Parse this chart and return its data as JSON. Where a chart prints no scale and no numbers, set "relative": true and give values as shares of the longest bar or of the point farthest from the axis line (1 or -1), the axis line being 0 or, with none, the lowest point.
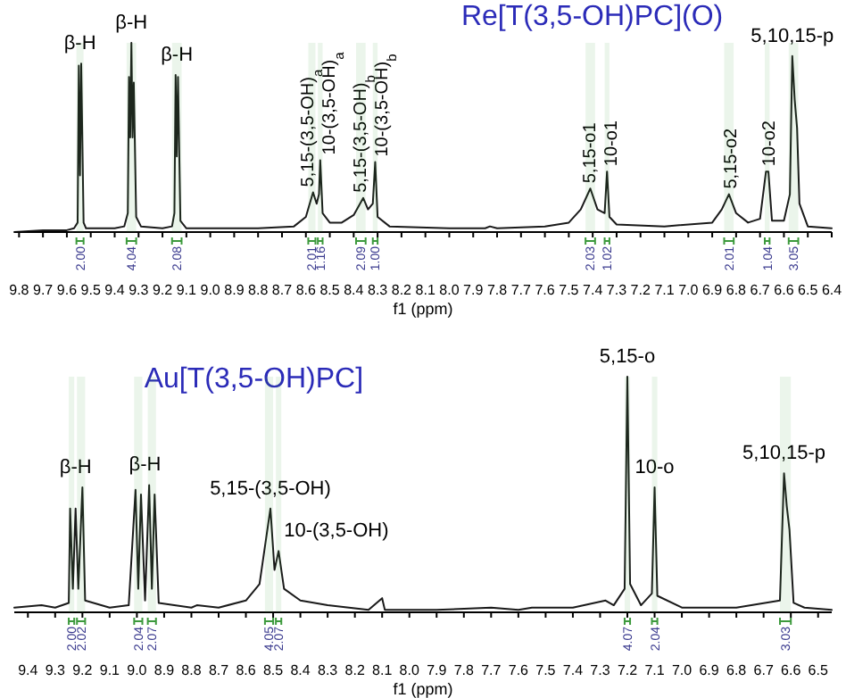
{
  "chart_data": [
    {
      "type": "line",
      "title": "Re[T(3,5-OH)PC](O)",
      "xlabel": "f1 (ppm)",
      "relative": true,
      "xlim": [
        9.82,
        6.4
      ],
      "xticks": [
        9.8,
        9.7,
        9.6,
        9.5,
        9.4,
        9.3,
        9.2,
        9.1,
        {
          "value": 9,
          "label": "9.0"
        },
        8.9,
        8.8,
        8.7,
        8.6,
        8.5,
        8.4,
        8.3,
        8.2,
        8.1,
        {
          "value": 8,
          "label": "8.0"
        },
        7.9,
        7.8,
        7.7,
        7.6,
        7.5,
        7.4,
        7.3,
        7.2,
        7.1,
        {
          "value": 7,
          "label": "7.0"
        },
        6.9,
        6.8,
        6.7,
        6.6,
        6.5,
        6.4
      ],
      "x": [
        9.82,
        9.7,
        9.6,
        9.57,
        9.555,
        9.55,
        9.545,
        9.54,
        9.53,
        9.52,
        9.4,
        9.36,
        9.345,
        9.34,
        9.335,
        9.33,
        9.325,
        9.32,
        9.31,
        9.29,
        9.2,
        9.16,
        9.15,
        9.145,
        9.14,
        9.135,
        9.125,
        9.1,
        9.0,
        8.8,
        8.65,
        8.6,
        8.57,
        8.555,
        8.545,
        8.54,
        8.53,
        8.5,
        8.45,
        8.4,
        8.36,
        8.34,
        8.32,
        8.31,
        8.3,
        8.25,
        8.0,
        7.85,
        7.83,
        7.8,
        7.6,
        7.5,
        7.45,
        7.41,
        7.38,
        7.35,
        7.34,
        7.33,
        7.3,
        7.1,
        6.9,
        6.86,
        6.83,
        6.8,
        6.75,
        6.7,
        6.675,
        6.665,
        6.65,
        6.6,
        6.575,
        6.565,
        6.555,
        6.545,
        6.535,
        6.5,
        6.4
      ],
      "series": [
        {
          "color": "#1a1a1a",
          "values": [
            0,
            0.01,
            0.01,
            0.02,
            0.05,
            0.88,
            0.3,
            0.89,
            0.05,
            0.02,
            0.02,
            0.03,
            0.1,
            0.82,
            0.5,
            1,
            0.5,
            0.79,
            0.08,
            0.03,
            0.02,
            0.03,
            0.1,
            0.83,
            0.4,
            0.82,
            0.06,
            0.02,
            0.02,
            0.02,
            0.03,
            0.08,
            0.21,
            0.15,
            0.2,
            0.38,
            0.1,
            0.05,
            0.05,
            0.09,
            0.18,
            0.12,
            0.15,
            0.37,
            0.08,
            0.03,
            0.02,
            0.02,
            0.03,
            0.02,
            0.03,
            0.05,
            0.12,
            0.23,
            0.12,
            0.1,
            0.32,
            0.08,
            0.04,
            0.03,
            0.05,
            0.12,
            0.2,
            0.1,
            0.05,
            0.07,
            0.32,
            0.32,
            0.06,
            0.06,
            0.2,
            0.93,
            0.7,
            0.55,
            0.15,
            0.03,
            0.02
          ]
        }
      ],
      "annotations": [
        {
          "text": "β-H",
          "x": 9.545,
          "y": 0.89
        },
        {
          "text": "β-H",
          "x": 9.33,
          "y": 1
        },
        {
          "text": "β-H",
          "x": 9.14,
          "y": 0.83
        },
        {
          "text": "5,15-(3,5-OH)$_{a}$",
          "x": 8.57,
          "y": 0.21
        },
        {
          "text": "10-(3,5-OH)$_{a}$",
          "x": 8.54,
          "y": 0.38
        },
        {
          "text": "5,15-(3,5-OH)$_{b}$",
          "x": 8.36,
          "y": 0.18
        },
        {
          "text": "10-(3,5-OH)$_{b}$",
          "x": 8.31,
          "y": 0.37
        },
        {
          "text": "5,15-o1",
          "x": 7.41,
          "y": 0.23
        },
        {
          "text": "10-o1",
          "x": 7.34,
          "y": 0.32
        },
        {
          "text": "5,15-o2",
          "x": 6.83,
          "y": 0.2
        },
        {
          "text": "10-o2",
          "x": 6.67,
          "y": 0.32
        },
        {
          "text": "5,10,15-p",
          "x": 6.565,
          "y": 0.93
        }
      ],
      "bands": [
        {
          "axis": "x",
          "from": 9.56,
          "to": 9.53,
          "label": "2.00"
        },
        {
          "axis": "x",
          "from": 9.35,
          "to": 9.31,
          "label": "4.04"
        },
        {
          "axis": "x",
          "from": 9.16,
          "to": 9.12,
          "label": "2.08"
        },
        {
          "axis": "x",
          "from": 8.59,
          "to": 8.56,
          "label": "2.01"
        },
        {
          "axis": "x",
          "from": 8.55,
          "to": 8.53,
          "label": "1.16"
        },
        {
          "axis": "x",
          "from": 8.39,
          "to": 8.35,
          "label": "2.09"
        },
        {
          "axis": "x",
          "from": 8.32,
          "to": 8.3,
          "label": "1.00"
        },
        {
          "axis": "x",
          "from": 7.43,
          "to": 7.39,
          "label": "2.03"
        },
        {
          "axis": "x",
          "from": 7.35,
          "to": 7.33,
          "label": "1.02"
        },
        {
          "axis": "x",
          "from": 6.85,
          "to": 6.81,
          "label": "2.01"
        },
        {
          "axis": "x",
          "from": 6.68,
          "to": 6.66,
          "label": "1.04"
        },
        {
          "axis": "x",
          "from": 6.58,
          "to": 6.54,
          "label": "3.05"
        }
      ]
    },
    {
      "type": "line",
      "title": "Au[T(3,5-OH)PC]",
      "xlabel": "f1 (ppm)",
      "relative": true,
      "xlim": [
        9.45,
        6.45
      ],
      "xticks": [
        9.4,
        9.3,
        9.2,
        9.1,
        {
          "value": 9,
          "label": "9.0"
        },
        8.9,
        8.8,
        8.7,
        8.6,
        8.5,
        8.4,
        8.3,
        8.2,
        8.1,
        {
          "value": 8,
          "label": "8.0"
        },
        7.9,
        7.8,
        7.7,
        7.6,
        7.5,
        7.4,
        7.3,
        7.2,
        7.1,
        {
          "value": 7,
          "label": "7.0"
        },
        6.9,
        6.8,
        6.7,
        6.6,
        6.5
      ],
      "x": [
        9.45,
        9.35,
        9.3,
        9.25,
        9.245,
        9.235,
        9.225,
        9.215,
        9.2,
        9.19,
        9.1,
        9.03,
        9.005,
        8.995,
        8.985,
        8.97,
        8.955,
        8.945,
        8.935,
        8.92,
        8.8,
        8.78,
        8.7,
        8.6,
        8.55,
        8.51,
        8.495,
        8.48,
        8.46,
        8.4,
        8.3,
        8.15,
        8.1,
        8.09,
        7.9,
        7.7,
        7.6,
        7.55,
        7.4,
        7.28,
        7.25,
        7.21,
        7.2,
        7.19,
        7.15,
        7.11,
        7.1,
        7.09,
        7,
        6.8,
        6.64,
        6.625,
        6.615,
        6.605,
        6.59,
        6.55,
        6.45
      ],
      "series": [
        {
          "color": "#1a1a1a",
          "values": [
            0.02,
            0.03,
            0.02,
            0.04,
            0.44,
            0.1,
            0.44,
            0.1,
            0.53,
            0.05,
            0.02,
            0.03,
            0.52,
            0.1,
            0.5,
            0.05,
            0.54,
            0.1,
            0.5,
            0.04,
            0.02,
            0.03,
            0.02,
            0.05,
            0.12,
            0.44,
            0.18,
            0.26,
            0.1,
            0.05,
            0.03,
            0.01,
            0.06,
            0.01,
            0.01,
            0.02,
            0.01,
            0.02,
            0.02,
            0.05,
            0.03,
            0.1,
            1,
            0.12,
            0.03,
            0.08,
            0.53,
            0.07,
            0.02,
            0.02,
            0.05,
            0.59,
            0.45,
            0.35,
            0.04,
            0.02,
            0.01
          ]
        }
      ],
      "annotations": [
        {
          "text": "β-H",
          "x": 9.225,
          "y": 0.53
        },
        {
          "text": "β-H",
          "x": 8.97,
          "y": 0.54
        },
        {
          "text": "5,15-(3,5-OH)",
          "x": 8.51,
          "y": 0.44
        },
        {
          "text": "10-(3,5-OH)",
          "x": 8.48,
          "y": 0.26
        },
        {
          "text": "5,15-o",
          "x": 7.2,
          "y": 1
        },
        {
          "text": "10-o",
          "x": 7.1,
          "y": 0.53
        },
        {
          "text": "5,10,15-p",
          "x": 6.625,
          "y": 0.59
        }
      ],
      "bands": [
        {
          "axis": "x",
          "from": 9.25,
          "to": 9.23,
          "label": "2.00"
        },
        {
          "axis": "x",
          "from": 9.22,
          "to": 9.19,
          "label": "2.02"
        },
        {
          "axis": "x",
          "from": 9.01,
          "to": 8.98,
          "label": "2.04"
        },
        {
          "axis": "x",
          "from": 8.96,
          "to": 8.93,
          "label": "2.07"
        },
        {
          "axis": "x",
          "from": 8.53,
          "to": 8.5,
          "label": "4.05"
        },
        {
          "axis": "x",
          "from": 8.49,
          "to": 8.47,
          "label": "2.07"
        },
        {
          "axis": "x",
          "from": 7.21,
          "to": 7.19,
          "label": "4.07"
        },
        {
          "axis": "x",
          "from": 7.11,
          "to": 7.09,
          "label": "2.04"
        },
        {
          "axis": "x",
          "from": 6.64,
          "to": 6.6,
          "label": "3.03"
        }
      ]
    }
  ]
}
